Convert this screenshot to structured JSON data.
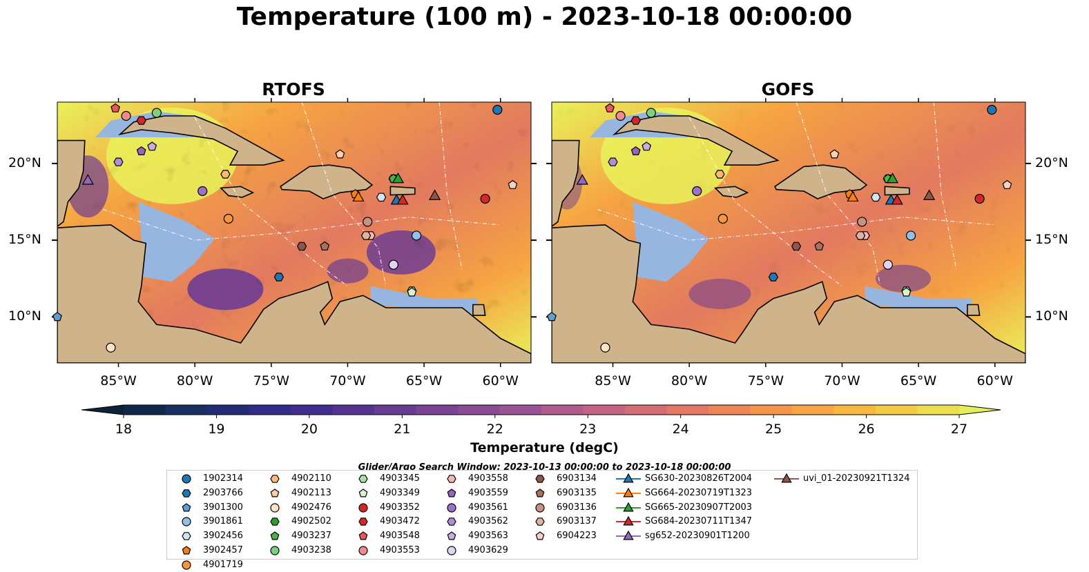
{
  "title": "Temperature (100 m) - 2023-10-18 00:00:00",
  "panels": [
    {
      "name": "RTOFS"
    },
    {
      "name": "GOFS"
    }
  ],
  "x_ticks": [
    "85°W",
    "80°W",
    "75°W",
    "70°W",
    "65°W",
    "60°W"
  ],
  "y_ticks": [
    "20°N",
    "15°N",
    "10°N"
  ],
  "colorbar": {
    "label": "Temperature (degC)",
    "ticks": [
      "18",
      "19",
      "20",
      "21",
      "22",
      "23",
      "24",
      "25",
      "26",
      "27"
    ],
    "range": [
      18,
      27
    ],
    "colors": [
      "#0b2238",
      "#11284a",
      "#18305f",
      "#222d75",
      "#302c88",
      "#422e8f",
      "#553390",
      "#673c92",
      "#784493",
      "#894c94",
      "#9a5493",
      "#ad5c8d",
      "#c36482",
      "#d56d75",
      "#e37866",
      "#ed8557",
      "#f4954b",
      "#f6a644",
      "#f6b841",
      "#f3cb44",
      "#ecde4c",
      "#e3ee58"
    ]
  },
  "search_window": "Glider/Argo Search Window: 2023-10-13 00:00:00 to 2023-10-18 00:00:00",
  "map_colors": {
    "land": "#cfb48b",
    "shallow": "#97b6df",
    "warm": "#e9f25a",
    "hot": "#f6a442",
    "mid": "#e27a60",
    "cool": "#6e3d92"
  },
  "chart_data": {
    "type": "map",
    "lon_range": [
      -89,
      -58
    ],
    "lat_range": [
      7,
      24
    ],
    "floats": [
      {
        "id": "1902314",
        "lon": -60.2,
        "lat": 23.5,
        "marker": "circle",
        "color": "#1f77b4"
      },
      {
        "id": "2903766",
        "lon": -74.5,
        "lat": 12.6,
        "marker": "hexagon",
        "color": "#1f77b4"
      },
      {
        "id": "3901300",
        "lon": -89.0,
        "lat": 10.0,
        "marker": "pentagon",
        "color": "#5c9fd0"
      },
      {
        "id": "3901861",
        "lon": -65.5,
        "lat": 15.3,
        "marker": "circle",
        "color": "#8fc1ea"
      },
      {
        "id": "3902456",
        "lon": -67.8,
        "lat": 17.8,
        "marker": "hexagon",
        "color": "#cde6f7"
      },
      {
        "id": "3902457",
        "lon": -69.5,
        "lat": 18.0,
        "marker": "pentagon",
        "color": "#ff7f0e"
      },
      {
        "id": "4901719",
        "lon": -77.8,
        "lat": 16.4,
        "marker": "circle",
        "color": "#f7963a"
      },
      {
        "id": "4902110",
        "lon": -78.0,
        "lat": 19.3,
        "marker": "hexagon",
        "color": "#ffb878"
      },
      {
        "id": "4902113",
        "lon": -70.5,
        "lat": 20.6,
        "marker": "pentagon",
        "color": "#ffd0a8"
      },
      {
        "id": "4902476",
        "lon": -85.5,
        "lat": 8.0,
        "marker": "circle",
        "color": "#ffe3c6"
      },
      {
        "id": "4902502",
        "lon": -67.0,
        "lat": 19.0,
        "marker": "hexagon",
        "color": "#2ca02c"
      },
      {
        "id": "4903237",
        "lon": -67.0,
        "lat": 19.0,
        "marker": "pentagon",
        "color": "#4cb34c"
      },
      {
        "id": "4903238",
        "lon": -82.5,
        "lat": 23.3,
        "marker": "circle",
        "color": "#7dd17d"
      },
      {
        "id": "4903345",
        "lon": -65.8,
        "lat": 11.7,
        "marker": "hexagon",
        "color": "#a8e3a1"
      },
      {
        "id": "4903349",
        "lon": -65.8,
        "lat": 11.6,
        "marker": "pentagon",
        "color": "#d4f5cf"
      },
      {
        "id": "4903352",
        "lon": -61.0,
        "lat": 17.7,
        "marker": "circle",
        "color": "#d62728"
      },
      {
        "id": "4903472",
        "lon": -83.5,
        "lat": 22.8,
        "marker": "hexagon",
        "color": "#d62728"
      },
      {
        "id": "4903548",
        "lon": -85.2,
        "lat": 23.6,
        "marker": "pentagon",
        "color": "#e8585a"
      },
      {
        "id": "4903553",
        "lon": -84.5,
        "lat": 23.1,
        "marker": "circle",
        "color": "#f28c8c"
      },
      {
        "id": "4903558",
        "lon": -68.5,
        "lat": 15.3,
        "marker": "hexagon",
        "color": "#f5b7b4"
      },
      {
        "id": "4903559",
        "lon": -83.5,
        "lat": 20.8,
        "marker": "pentagon",
        "color": "#9467bd"
      },
      {
        "id": "4903561",
        "lon": -79.5,
        "lat": 18.2,
        "marker": "circle",
        "color": "#9b72c5"
      },
      {
        "id": "4903562",
        "lon": -85.0,
        "lat": 20.1,
        "marker": "hexagon",
        "color": "#b08ed4"
      },
      {
        "id": "4903563",
        "lon": -82.8,
        "lat": 21.1,
        "marker": "pentagon",
        "color": "#c7aee2"
      },
      {
        "id": "4903629",
        "lon": -67.0,
        "lat": 13.4,
        "marker": "circle",
        "color": "#e2d3f2"
      },
      {
        "id": "6903134",
        "lon": -73.0,
        "lat": 14.6,
        "marker": "hexagon",
        "color": "#8c564b"
      },
      {
        "id": "6903135",
        "lon": -71.5,
        "lat": 14.6,
        "marker": "pentagon",
        "color": "#a8725f"
      },
      {
        "id": "6903136",
        "lon": -68.7,
        "lat": 16.2,
        "marker": "circle",
        "color": "#c49381"
      },
      {
        "id": "6903137",
        "lon": -68.8,
        "lat": 15.3,
        "marker": "hexagon",
        "color": "#ddb3a4"
      },
      {
        "id": "6904223",
        "lon": -59.2,
        "lat": 18.6,
        "marker": "pentagon",
        "color": "#f3d2c5"
      }
    ],
    "gliders": [
      {
        "id": "SG630-20230826T2004",
        "lon": -66.8,
        "lat": 17.6,
        "color": "#1f77b4"
      },
      {
        "id": "SG664-20230719T1323",
        "lon": -69.3,
        "lat": 17.8,
        "color": "#ff7f0e"
      },
      {
        "id": "SG665-20230907T2003",
        "lon": -66.7,
        "lat": 19.0,
        "color": "#2ca02c"
      },
      {
        "id": "SG684-20230711T1347",
        "lon": -66.4,
        "lat": 17.6,
        "color": "#d62728"
      },
      {
        "id": "sg652-20230901T1200",
        "lon": -87.0,
        "lat": 18.9,
        "color": "#9467bd"
      },
      {
        "id": "uvi_01-20230921T1324",
        "lon": -64.3,
        "lat": 17.9,
        "color": "#8c564b"
      }
    ]
  }
}
